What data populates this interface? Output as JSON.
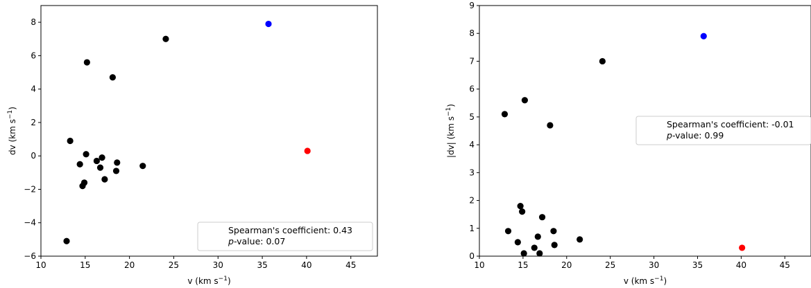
{
  "chart_data": [
    {
      "type": "scatter",
      "xlabel": "v (km s",
      "xlabel_sup": "−1",
      "xlabel_tail": ")",
      "ylabel": "dv (km s",
      "ylabel_sup": "−1",
      "ylabel_tail": ")",
      "xlim": [
        10,
        48
      ],
      "ylim": [
        -6,
        9
      ],
      "xticks": [
        10,
        15,
        20,
        25,
        30,
        35,
        40,
        45
      ],
      "yticks": [
        -6,
        -4,
        -2,
        0,
        2,
        4,
        6,
        8
      ],
      "ytick_labels": [
        "−6",
        "−4",
        "−2",
        "0",
        "2",
        "4",
        "6",
        "8"
      ],
      "legend_placement": "lower-right",
      "legend_line1": "Spearman's coefficient: 0.43",
      "legend_line2_italic": "p",
      "legend_line2_rest": "-value: 0.07",
      "colors": {
        "main": "#000000",
        "highlight_blue": "#0000ff",
        "highlight_red": "#ff0000"
      },
      "points": [
        {
          "x": 12.9,
          "y": -5.1,
          "color": "#000000"
        },
        {
          "x": 13.3,
          "y": 0.9,
          "color": "#000000"
        },
        {
          "x": 14.4,
          "y": -0.5,
          "color": "#000000"
        },
        {
          "x": 14.7,
          "y": -1.8,
          "color": "#000000"
        },
        {
          "x": 14.9,
          "y": -1.6,
          "color": "#000000"
        },
        {
          "x": 15.1,
          "y": 0.1,
          "color": "#000000"
        },
        {
          "x": 15.2,
          "y": 5.6,
          "color": "#000000"
        },
        {
          "x": 16.3,
          "y": -0.3,
          "color": "#000000"
        },
        {
          "x": 16.7,
          "y": -0.7,
          "color": "#000000"
        },
        {
          "x": 16.9,
          "y": -0.1,
          "color": "#000000"
        },
        {
          "x": 17.2,
          "y": -1.4,
          "color": "#000000"
        },
        {
          "x": 18.1,
          "y": 4.7,
          "color": "#000000"
        },
        {
          "x": 18.5,
          "y": -0.9,
          "color": "#000000"
        },
        {
          "x": 18.6,
          "y": -0.4,
          "color": "#000000"
        },
        {
          "x": 21.5,
          "y": -0.6,
          "color": "#000000"
        },
        {
          "x": 24.1,
          "y": 7.0,
          "color": "#000000"
        },
        {
          "x": 35.7,
          "y": 7.9,
          "color": "#0000ff"
        },
        {
          "x": 40.1,
          "y": 0.3,
          "color": "#ff0000"
        }
      ]
    },
    {
      "type": "scatter",
      "xlabel": "v (km s",
      "xlabel_sup": "−1",
      "xlabel_tail": ")",
      "ylabel": "|dv| (km s",
      "ylabel_sup": "−1",
      "ylabel_tail": ")",
      "xlim": [
        10,
        48
      ],
      "ylim": [
        0,
        9
      ],
      "xticks": [
        10,
        15,
        20,
        25,
        30,
        35,
        40,
        45
      ],
      "yticks": [
        0,
        1,
        2,
        3,
        4,
        5,
        6,
        7,
        8,
        9
      ],
      "ytick_labels": [
        "0",
        "1",
        "2",
        "3",
        "4",
        "5",
        "6",
        "7",
        "8",
        "9"
      ],
      "legend_placement": "center-right",
      "legend_line1": "Spearman's coefficient: -0.01",
      "legend_line2_italic": "p",
      "legend_line2_rest": "-value: 0.99",
      "colors": {
        "main": "#000000",
        "highlight_blue": "#0000ff",
        "highlight_red": "#ff0000"
      },
      "points": [
        {
          "x": 12.9,
          "y": 5.1,
          "color": "#000000"
        },
        {
          "x": 13.3,
          "y": 0.9,
          "color": "#000000"
        },
        {
          "x": 14.4,
          "y": 0.5,
          "color": "#000000"
        },
        {
          "x": 14.7,
          "y": 1.8,
          "color": "#000000"
        },
        {
          "x": 14.9,
          "y": 1.6,
          "color": "#000000"
        },
        {
          "x": 15.1,
          "y": 0.1,
          "color": "#000000"
        },
        {
          "x": 15.2,
          "y": 5.6,
          "color": "#000000"
        },
        {
          "x": 16.3,
          "y": 0.3,
          "color": "#000000"
        },
        {
          "x": 16.7,
          "y": 0.7,
          "color": "#000000"
        },
        {
          "x": 16.9,
          "y": 0.1,
          "color": "#000000"
        },
        {
          "x": 17.2,
          "y": 1.4,
          "color": "#000000"
        },
        {
          "x": 18.1,
          "y": 4.7,
          "color": "#000000"
        },
        {
          "x": 18.5,
          "y": 0.9,
          "color": "#000000"
        },
        {
          "x": 18.6,
          "y": 0.4,
          "color": "#000000"
        },
        {
          "x": 21.5,
          "y": 0.6,
          "color": "#000000"
        },
        {
          "x": 24.1,
          "y": 7.0,
          "color": "#000000"
        },
        {
          "x": 35.7,
          "y": 7.9,
          "color": "#0000ff"
        },
        {
          "x": 40.1,
          "y": 0.3,
          "color": "#ff0000"
        }
      ]
    }
  ]
}
